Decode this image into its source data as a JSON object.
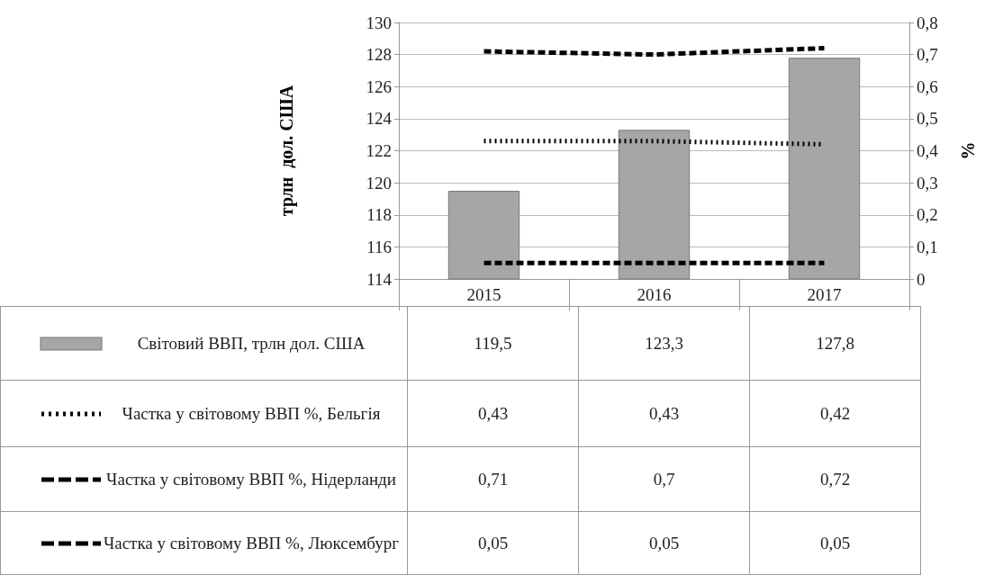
{
  "chart_data": {
    "type": "bar",
    "categories": [
      "2015",
      "2016",
      "2017"
    ],
    "ylabel": "трлн  дол. США",
    "y2label": "%",
    "ylim": [
      114,
      130
    ],
    "yticks": [
      114,
      116,
      118,
      120,
      122,
      124,
      126,
      128,
      130
    ],
    "y2lim": [
      0,
      0.8
    ],
    "y2ticks": [
      0,
      {
        "value": 0.1,
        "label": "0,1"
      },
      {
        "value": 0.2,
        "label": "0,2"
      },
      {
        "value": 0.3,
        "label": "0,3"
      },
      {
        "value": 0.4,
        "label": "0,4"
      },
      {
        "value": 0.5,
        "label": "0,5"
      },
      {
        "value": 0.6,
        "label": "0,6"
      },
      {
        "value": 0.7,
        "label": "0,7"
      },
      {
        "value": 0.8,
        "label": "0,8"
      }
    ],
    "grid": "y",
    "legend": "bottom left",
    "marker": "none",
    "series": [
      {
        "name": "Світовий ВВП, трлн  дол. США",
        "type": "bar",
        "color": "#a6a6a6",
        "values": [
          119.5,
          123.3,
          127.8
        ],
        "value_labels": [
          "119,5",
          "123,3",
          "127,8"
        ]
      },
      {
        "name": "Частка у світовому ВВП %, Бельгія",
        "type": "line",
        "axis": "y2",
        "line_style": "dotted",
        "color": "#000000",
        "values": [
          0.43,
          0.43,
          0.42
        ],
        "value_labels": [
          "0,43",
          "0,43",
          "0,42"
        ]
      },
      {
        "name": "Частка у світовому ВВП %, Нідерланди",
        "type": "line",
        "axis": "y2",
        "line_style": "dashed",
        "color": "#000000",
        "values": [
          0.71,
          0.7,
          0.72
        ],
        "value_labels": [
          "0,71",
          "0,7",
          "0,72"
        ]
      },
      {
        "name": "Частка у світовому ВВП %, Люксембург",
        "type": "line",
        "axis": "y2",
        "line_style": "dashed",
        "color": "#000000",
        "values": [
          0.05,
          0.05,
          0.05
        ],
        "value_labels": [
          "0,05",
          "0,05",
          "0,05"
        ]
      }
    ]
  }
}
